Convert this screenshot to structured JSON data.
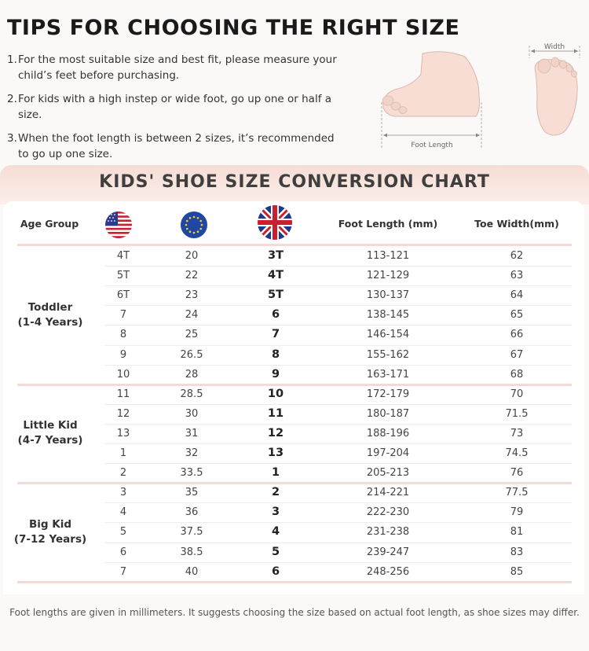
{
  "tips": {
    "title": "TIPS FOR CHOOSING THE RIGHT SIZE",
    "items": [
      {
        "num": "1.",
        "text": "For the most suitable size and best fit, please measure your child’s feet before purchasing."
      },
      {
        "num": "2.",
        "text": "For kids with a high instep or wide foot, go up one or half a size."
      },
      {
        "num": "3.",
        "text": "When the foot length is between 2 sizes, it’s recommended to go up one size."
      }
    ],
    "foot_length_label": "Foot  Length",
    "width_label": "Width"
  },
  "chart": {
    "title": "KIDS' SHOE SIZE CONVERSION CHART",
    "headers": {
      "age_group": "Age Group",
      "us_flag": "us-flag-icon",
      "eu_flag": "eu-flag-icon",
      "uk_flag": "uk-flag-icon",
      "foot_length": "Foot Length (mm)",
      "toe_width": "Toe Width(mm)"
    },
    "groups": [
      {
        "label_line1": "Toddler",
        "label_line2": "(1-4 Years)",
        "rows": [
          [
            "4T",
            "20",
            "3T",
            "113-121",
            "62"
          ],
          [
            "5T",
            "22",
            "4T",
            "121-129",
            "63"
          ],
          [
            "6T",
            "23",
            "5T",
            "130-137",
            "64"
          ],
          [
            "7",
            "24",
            "6",
            "138-145",
            "65"
          ],
          [
            "8",
            "25",
            "7",
            "146-154",
            "66"
          ],
          [
            "9",
            "26.5",
            "8",
            "155-162",
            "67"
          ],
          [
            "10",
            "28",
            "9",
            "163-171",
            "68"
          ]
        ]
      },
      {
        "label_line1": "Little Kid",
        "label_line2": "(4-7 Years)",
        "rows": [
          [
            "11",
            "28.5",
            "10",
            "172-179",
            "70"
          ],
          [
            "12",
            "30",
            "11",
            "180-187",
            "71.5"
          ],
          [
            "13",
            "31",
            "12",
            "188-196",
            "73"
          ],
          [
            "1",
            "32",
            "13",
            "197-204",
            "74.5"
          ],
          [
            "2",
            "33.5",
            "1",
            "205-213",
            "76"
          ]
        ]
      },
      {
        "label_line1": "Big Kid",
        "label_line2": "(7-12 Years)",
        "rows": [
          [
            "3",
            "35",
            "2",
            "214-221",
            "77.5"
          ],
          [
            "4",
            "36",
            "3",
            "222-230",
            "79"
          ],
          [
            "5",
            "37.5",
            "4",
            "231-238",
            "81"
          ],
          [
            "6",
            "38.5",
            "5",
            "239-247",
            "83"
          ],
          [
            "7",
            "40",
            "6",
            "248-256",
            "85"
          ]
        ]
      }
    ],
    "colors": {
      "accent_band": "#f6ddd5",
      "divider": "#f3dbd3"
    }
  },
  "footnote": "Foot lengths are given in millimeters. It suggests choosing the size based on actual foot length, as shoe sizes may differ."
}
